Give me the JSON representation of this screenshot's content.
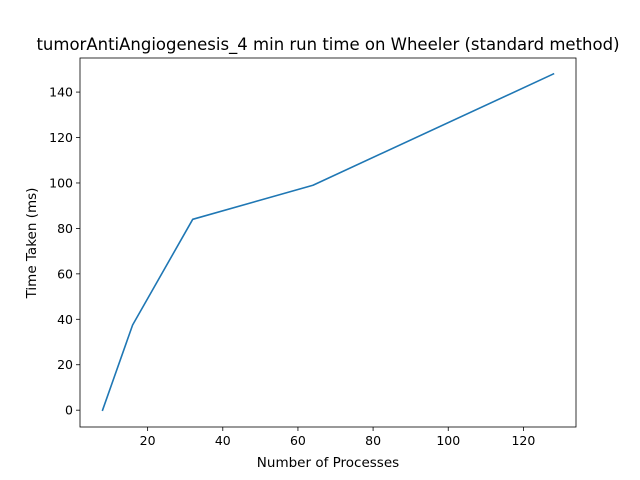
{
  "chart_data": {
    "type": "line",
    "title": "tumorAntiAngiogenesis_4 min run time on Wheeler (standard method)",
    "xlabel": "Number of Processes",
    "ylabel": "Time Taken (ms)",
    "xlim": [
      2,
      134
    ],
    "ylim": [
      -7.4,
      155
    ],
    "xticks": [
      20,
      40,
      60,
      80,
      100,
      120
    ],
    "yticks": [
      0,
      20,
      40,
      60,
      80,
      100,
      120,
      140
    ],
    "grid": false,
    "series": [
      {
        "color": "#1f77b4",
        "x": [
          8,
          16,
          32,
          64,
          128
        ],
        "y": [
          0,
          37.5,
          84,
          99,
          148
        ]
      }
    ]
  }
}
